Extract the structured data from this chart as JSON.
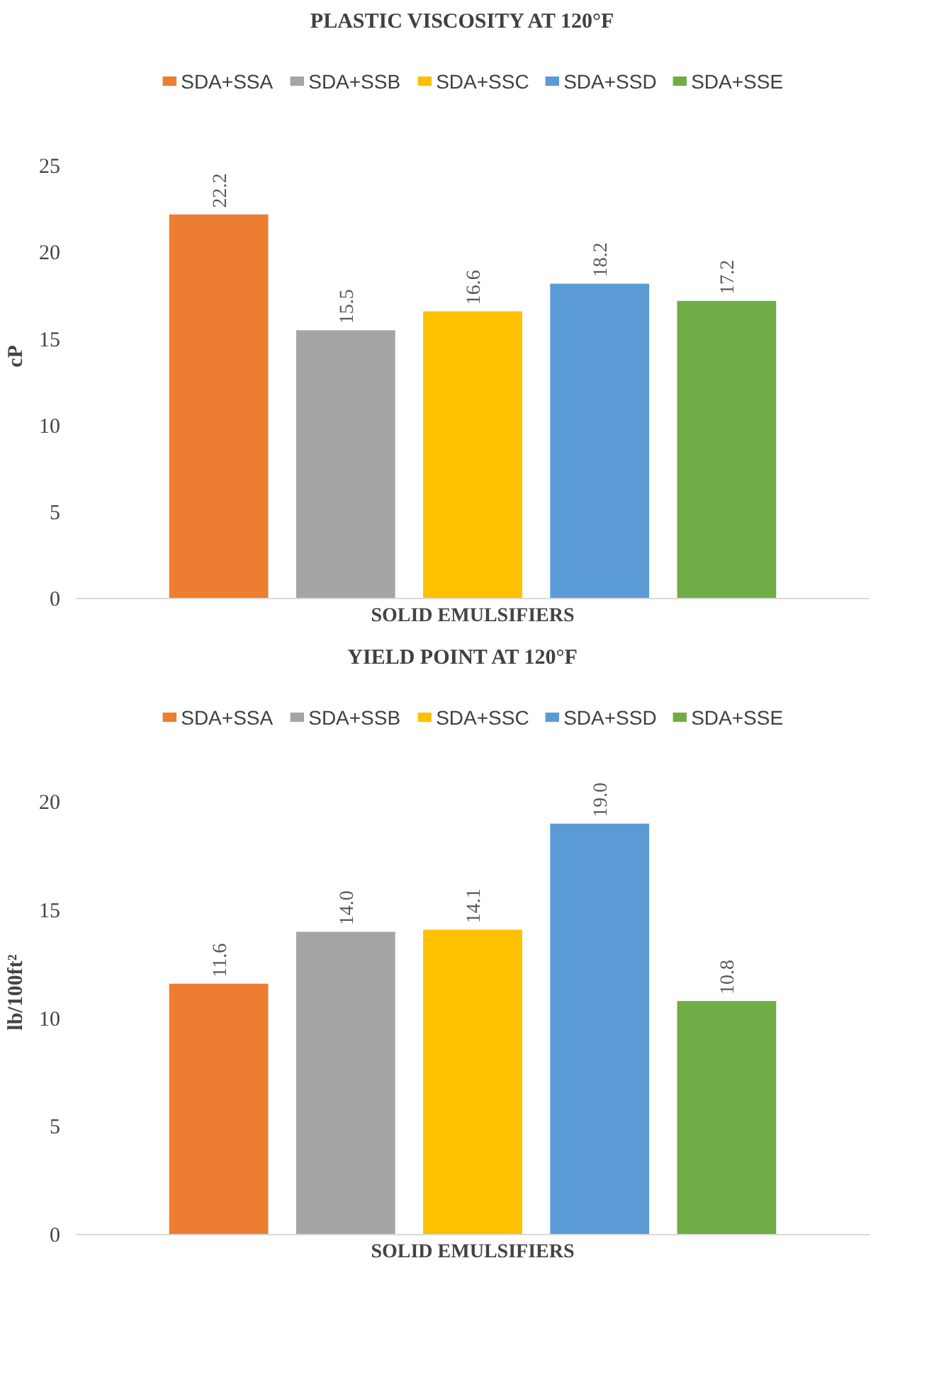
{
  "chart_data": [
    {
      "type": "bar",
      "title": "PLASTIC VISCOSITY AT 120°F",
      "xlabel": "SOLID EMULSIFIERS",
      "ylabel": "cP",
      "categories": [
        null
      ],
      "series": [
        {
          "name": "SDA+SSA",
          "color": "#ed7d31",
          "values": [
            22.2
          ]
        },
        {
          "name": "SDA+SSB",
          "color": "#a5a5a5",
          "values": [
            15.5
          ]
        },
        {
          "name": "SDA+SSC",
          "color": "#ffc000",
          "values": [
            16.6
          ]
        },
        {
          "name": "SDA+SSD",
          "color": "#5b9bd5",
          "values": [
            18.2
          ]
        },
        {
          "name": "SDA+SSE",
          "color": "#70ad47",
          "values": [
            17.2
          ]
        }
      ],
      "ylim": [
        0,
        25
      ],
      "yticks": [
        0,
        5,
        10,
        15,
        20,
        25
      ],
      "grid": false,
      "legend": "top",
      "data_labels": true
    },
    {
      "type": "bar",
      "title": "YIELD POINT AT 120°F",
      "xlabel": "SOLID EMULSIFIERS",
      "ylabel": "lb/100ft²",
      "categories": [
        null
      ],
      "series": [
        {
          "name": "SDA+SSA",
          "color": "#ed7d31",
          "values": [
            11.6
          ]
        },
        {
          "name": "SDA+SSB",
          "color": "#a5a5a5",
          "values": [
            14.0
          ],
          "value_labels": [
            "14.0"
          ]
        },
        {
          "name": "SDA+SSC",
          "color": "#ffc000",
          "values": [
            14.1
          ]
        },
        {
          "name": "SDA+SSD",
          "color": "#5b9bd5",
          "values": [
            19.0
          ],
          "value_labels": [
            "19.0"
          ]
        },
        {
          "name": "SDA+SSE",
          "color": "#70ad47",
          "values": [
            10.8
          ]
        }
      ],
      "ylim": [
        0,
        20
      ],
      "yticks": [
        0,
        5,
        10,
        15,
        20
      ],
      "grid": false,
      "legend": "top",
      "data_labels": true
    }
  ]
}
